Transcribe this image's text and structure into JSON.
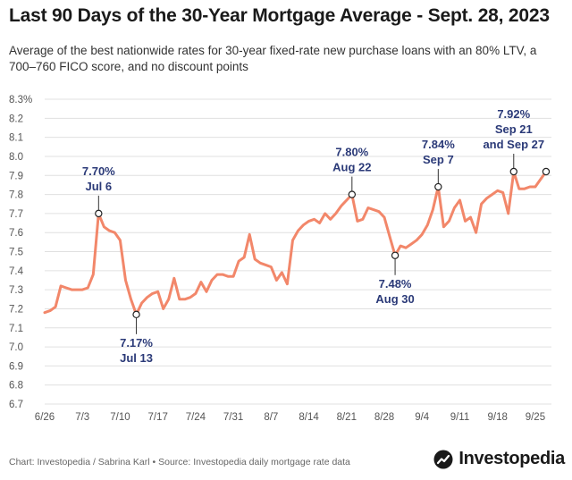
{
  "header": {
    "title": "Last 90 Days of the 30-Year Mortgage Average - Sept. 28, 2023",
    "subtitle": "Average of the best nationwide rates for 30-year fixed-rate new purchase loans with an 80% LTV, a 700–760 FICO score, and no discount points"
  },
  "footer": {
    "credit": "Chart: Investopedia / Sabrina Karl • Source: Investopedia daily mortgage rate data",
    "brand": "Investopedia"
  },
  "colors": {
    "line": "#f2876a",
    "label": "#2b3a78",
    "grid": "#e0e0e0",
    "axis_text": "#555555"
  },
  "chart_data": {
    "type": "line",
    "title": "Last 90 Days of the 30-Year Mortgage Average - Sept. 28, 2023",
    "subtitle": "Average of the best nationwide rates for 30-year fixed-rate new purchase loans with an 80% LTV, a 700–760 FICO score, and no discount points",
    "xlabel": "",
    "ylabel": "",
    "ylim": [
      6.7,
      8.3
    ],
    "yticks": [
      {
        "value": 6.7,
        "label": "6.7"
      },
      {
        "value": 6.8,
        "label": "6.8"
      },
      {
        "value": 6.9,
        "label": "6.9"
      },
      {
        "value": 7.0,
        "label": "7.0"
      },
      {
        "value": 7.1,
        "label": "7.1"
      },
      {
        "value": 7.2,
        "label": "7.2"
      },
      {
        "value": 7.3,
        "label": "7.3"
      },
      {
        "value": 7.4,
        "label": "7.4"
      },
      {
        "value": 7.5,
        "label": "7.5"
      },
      {
        "value": 7.6,
        "label": "7.6"
      },
      {
        "value": 7.7,
        "label": "7.7"
      },
      {
        "value": 7.8,
        "label": "7.8"
      },
      {
        "value": 7.9,
        "label": "7.9"
      },
      {
        "value": 8.0,
        "label": "8.0"
      },
      {
        "value": 8.1,
        "label": "8.1"
      },
      {
        "value": 8.2,
        "label": "8.2"
      },
      {
        "value": 8.3,
        "label": "8.3%"
      }
    ],
    "xlim": [
      "2023-06-26",
      "2023-09-28"
    ],
    "xticks": [
      {
        "date": "2023-06-26",
        "label": "6/26"
      },
      {
        "date": "2023-07-03",
        "label": "7/3"
      },
      {
        "date": "2023-07-10",
        "label": "7/10"
      },
      {
        "date": "2023-07-17",
        "label": "7/17"
      },
      {
        "date": "2023-07-24",
        "label": "7/24"
      },
      {
        "date": "2023-07-31",
        "label": "7/31"
      },
      {
        "date": "2023-08-07",
        "label": "8/7"
      },
      {
        "date": "2023-08-14",
        "label": "8/14"
      },
      {
        "date": "2023-08-21",
        "label": "8/21"
      },
      {
        "date": "2023-08-28",
        "label": "8/28"
      },
      {
        "date": "2023-09-04",
        "label": "9/4"
      },
      {
        "date": "2023-09-11",
        "label": "9/11"
      },
      {
        "date": "2023-09-18",
        "label": "9/18"
      },
      {
        "date": "2023-09-25",
        "label": "9/25"
      }
    ],
    "grid": true,
    "series": [
      {
        "name": "",
        "points": [
          {
            "x": "2023-06-26",
            "y": 7.18
          },
          {
            "x": "2023-06-27",
            "y": 7.19
          },
          {
            "x": "2023-06-28",
            "y": 7.21
          },
          {
            "x": "2023-06-29",
            "y": 7.32
          },
          {
            "x": "2023-06-30",
            "y": 7.31
          },
          {
            "x": "2023-07-01",
            "y": 7.3
          },
          {
            "x": "2023-07-02",
            "y": 7.3
          },
          {
            "x": "2023-07-03",
            "y": 7.3
          },
          {
            "x": "2023-07-04",
            "y": 7.31
          },
          {
            "x": "2023-07-05",
            "y": 7.38
          },
          {
            "x": "2023-07-06",
            "y": 7.7
          },
          {
            "x": "2023-07-07",
            "y": 7.63
          },
          {
            "x": "2023-07-08",
            "y": 7.61
          },
          {
            "x": "2023-07-09",
            "y": 7.6
          },
          {
            "x": "2023-07-10",
            "y": 7.56
          },
          {
            "x": "2023-07-11",
            "y": 7.35
          },
          {
            "x": "2023-07-12",
            "y": 7.25
          },
          {
            "x": "2023-07-13",
            "y": 7.17
          },
          {
            "x": "2023-07-14",
            "y": 7.23
          },
          {
            "x": "2023-07-15",
            "y": 7.26
          },
          {
            "x": "2023-07-16",
            "y": 7.28
          },
          {
            "x": "2023-07-17",
            "y": 7.29
          },
          {
            "x": "2023-07-18",
            "y": 7.2
          },
          {
            "x": "2023-07-19",
            "y": 7.25
          },
          {
            "x": "2023-07-20",
            "y": 7.36
          },
          {
            "x": "2023-07-21",
            "y": 7.25
          },
          {
            "x": "2023-07-22",
            "y": 7.25
          },
          {
            "x": "2023-07-23",
            "y": 7.26
          },
          {
            "x": "2023-07-24",
            "y": 7.28
          },
          {
            "x": "2023-07-25",
            "y": 7.34
          },
          {
            "x": "2023-07-26",
            "y": 7.29
          },
          {
            "x": "2023-07-27",
            "y": 7.35
          },
          {
            "x": "2023-07-28",
            "y": 7.38
          },
          {
            "x": "2023-07-29",
            "y": 7.38
          },
          {
            "x": "2023-07-30",
            "y": 7.37
          },
          {
            "x": "2023-07-31",
            "y": 7.37
          },
          {
            "x": "2023-08-01",
            "y": 7.45
          },
          {
            "x": "2023-08-02",
            "y": 7.47
          },
          {
            "x": "2023-08-03",
            "y": 7.59
          },
          {
            "x": "2023-08-04",
            "y": 7.46
          },
          {
            "x": "2023-08-05",
            "y": 7.44
          },
          {
            "x": "2023-08-06",
            "y": 7.43
          },
          {
            "x": "2023-08-07",
            "y": 7.42
          },
          {
            "x": "2023-08-08",
            "y": 7.35
          },
          {
            "x": "2023-08-09",
            "y": 7.39
          },
          {
            "x": "2023-08-10",
            "y": 7.33
          },
          {
            "x": "2023-08-11",
            "y": 7.56
          },
          {
            "x": "2023-08-12",
            "y": 7.61
          },
          {
            "x": "2023-08-13",
            "y": 7.64
          },
          {
            "x": "2023-08-14",
            "y": 7.66
          },
          {
            "x": "2023-08-15",
            "y": 7.67
          },
          {
            "x": "2023-08-16",
            "y": 7.65
          },
          {
            "x": "2023-08-17",
            "y": 7.7
          },
          {
            "x": "2023-08-18",
            "y": 7.67
          },
          {
            "x": "2023-08-19",
            "y": 7.7
          },
          {
            "x": "2023-08-20",
            "y": 7.74
          },
          {
            "x": "2023-08-21",
            "y": 7.77
          },
          {
            "x": "2023-08-22",
            "y": 7.8
          },
          {
            "x": "2023-08-23",
            "y": 7.66
          },
          {
            "x": "2023-08-24",
            "y": 7.67
          },
          {
            "x": "2023-08-25",
            "y": 7.73
          },
          {
            "x": "2023-08-26",
            "y": 7.72
          },
          {
            "x": "2023-08-27",
            "y": 7.71
          },
          {
            "x": "2023-08-28",
            "y": 7.68
          },
          {
            "x": "2023-08-29",
            "y": 7.58
          },
          {
            "x": "2023-08-30",
            "y": 7.48
          },
          {
            "x": "2023-08-31",
            "y": 7.53
          },
          {
            "x": "2023-09-01",
            "y": 7.52
          },
          {
            "x": "2023-09-02",
            "y": 7.54
          },
          {
            "x": "2023-09-03",
            "y": 7.56
          },
          {
            "x": "2023-09-04",
            "y": 7.59
          },
          {
            "x": "2023-09-05",
            "y": 7.64
          },
          {
            "x": "2023-09-06",
            "y": 7.72
          },
          {
            "x": "2023-09-07",
            "y": 7.84
          },
          {
            "x": "2023-09-08",
            "y": 7.63
          },
          {
            "x": "2023-09-09",
            "y": 7.66
          },
          {
            "x": "2023-09-10",
            "y": 7.73
          },
          {
            "x": "2023-09-11",
            "y": 7.77
          },
          {
            "x": "2023-09-12",
            "y": 7.66
          },
          {
            "x": "2023-09-13",
            "y": 7.68
          },
          {
            "x": "2023-09-14",
            "y": 7.6
          },
          {
            "x": "2023-09-15",
            "y": 7.75
          },
          {
            "x": "2023-09-16",
            "y": 7.78
          },
          {
            "x": "2023-09-17",
            "y": 7.8
          },
          {
            "x": "2023-09-18",
            "y": 7.82
          },
          {
            "x": "2023-09-19",
            "y": 7.81
          },
          {
            "x": "2023-09-20",
            "y": 7.7
          },
          {
            "x": "2023-09-21",
            "y": 7.92
          },
          {
            "x": "2023-09-22",
            "y": 7.83
          },
          {
            "x": "2023-09-23",
            "y": 7.83
          },
          {
            "x": "2023-09-24",
            "y": 7.84
          },
          {
            "x": "2023-09-25",
            "y": 7.84
          },
          {
            "x": "2023-09-26",
            "y": 7.88
          },
          {
            "x": "2023-09-27",
            "y": 7.92
          }
        ]
      }
    ],
    "annotations": [
      {
        "x": "2023-07-06",
        "y": 7.7,
        "lines": [
          "7.70%",
          "Jul 6"
        ],
        "position": "above"
      },
      {
        "x": "2023-07-13",
        "y": 7.17,
        "lines": [
          "7.17%",
          "Jul 13"
        ],
        "position": "below"
      },
      {
        "x": "2023-08-22",
        "y": 7.8,
        "lines": [
          "7.80%",
          "Aug 22"
        ],
        "position": "above"
      },
      {
        "x": "2023-08-30",
        "y": 7.48,
        "lines": [
          "7.48%",
          "Aug 30"
        ],
        "position": "below"
      },
      {
        "x": "2023-09-07",
        "y": 7.84,
        "lines": [
          "7.84%",
          "Sep 7"
        ],
        "position": "above"
      },
      {
        "x": "2023-09-21",
        "y": 7.92,
        "lines": [
          "7.92%",
          "Sep 21",
          "and Sep 27"
        ],
        "position": "above",
        "also_marks": [
          "2023-09-27"
        ]
      }
    ]
  }
}
